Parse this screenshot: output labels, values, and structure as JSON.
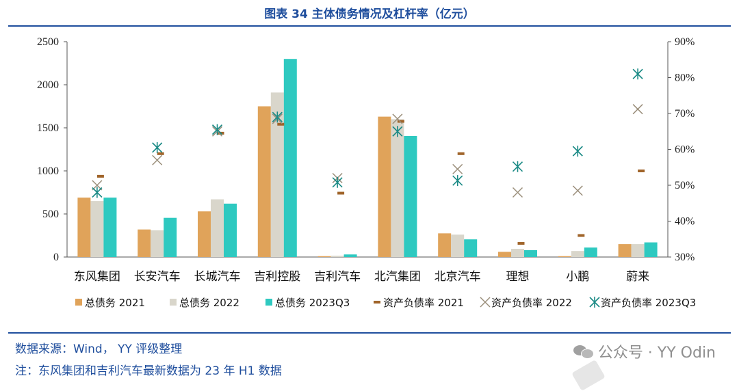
{
  "title": "图表 34 主体债务情况及杠杆率（亿元）",
  "chart_data": {
    "type": "bar",
    "categories": [
      "东风集团",
      "长安汽车",
      "长城汽车",
      "吉利控股",
      "吉利汽车",
      "北汽集团",
      "北京汽车",
      "理想",
      "小鹏",
      "蔚来"
    ],
    "series": [
      {
        "name": "总债务 2021",
        "kind": "bar",
        "axis": "left",
        "color": "#e0a35a",
        "values": [
          690,
          320,
          530,
          1750,
          10,
          1630,
          275,
          60,
          10,
          150
        ]
      },
      {
        "name": "总债务 2022",
        "kind": "bar",
        "axis": "left",
        "color": "#d9d6cb",
        "values": [
          650,
          310,
          670,
          1910,
          15,
          1600,
          260,
          95,
          70,
          150
        ]
      },
      {
        "name": "总债务 2023Q3",
        "kind": "bar",
        "axis": "left",
        "color": "#2ec9c0",
        "values": [
          690,
          455,
          620,
          2300,
          30,
          1405,
          205,
          80,
          110,
          170
        ]
      },
      {
        "name": "资产负债率 2021",
        "kind": "dash",
        "axis": "right",
        "color": "#a0642a",
        "values": [
          52.5,
          58.8,
          64.5,
          67.0,
          47.8,
          67.8,
          58.8,
          33.8,
          36.0,
          54.0
        ]
      },
      {
        "name": "资产负债率 2022",
        "kind": "x",
        "axis": "right",
        "color": "#9a8e7a",
        "values": [
          50.0,
          57.0,
          65.0,
          68.5,
          52.0,
          68.5,
          54.5,
          48.0,
          48.5,
          71.2
        ]
      },
      {
        "name": "资产负债率 2023Q3",
        "kind": "star",
        "axis": "right",
        "color": "#1a8a85",
        "values": [
          48.0,
          60.5,
          65.5,
          69.0,
          50.8,
          65.0,
          51.3,
          55.2,
          59.5,
          81.0
        ]
      }
    ],
    "y_left": {
      "min": 0,
      "max": 2500,
      "ticks": [
        0,
        500,
        1000,
        1500,
        2000,
        2500
      ]
    },
    "y_right": {
      "min": 30,
      "max": 90,
      "ticks": [
        "30%",
        "40%",
        "50%",
        "60%",
        "70%",
        "80%",
        "90%"
      ]
    },
    "legend_position": "bottom"
  },
  "source_line": "数据来源：Wind， YY 评级整理",
  "note_line": "注：东风集团和吉利汽车最新数据为 23 年 H1 数据",
  "watermark": "公众号 · YY Odin"
}
